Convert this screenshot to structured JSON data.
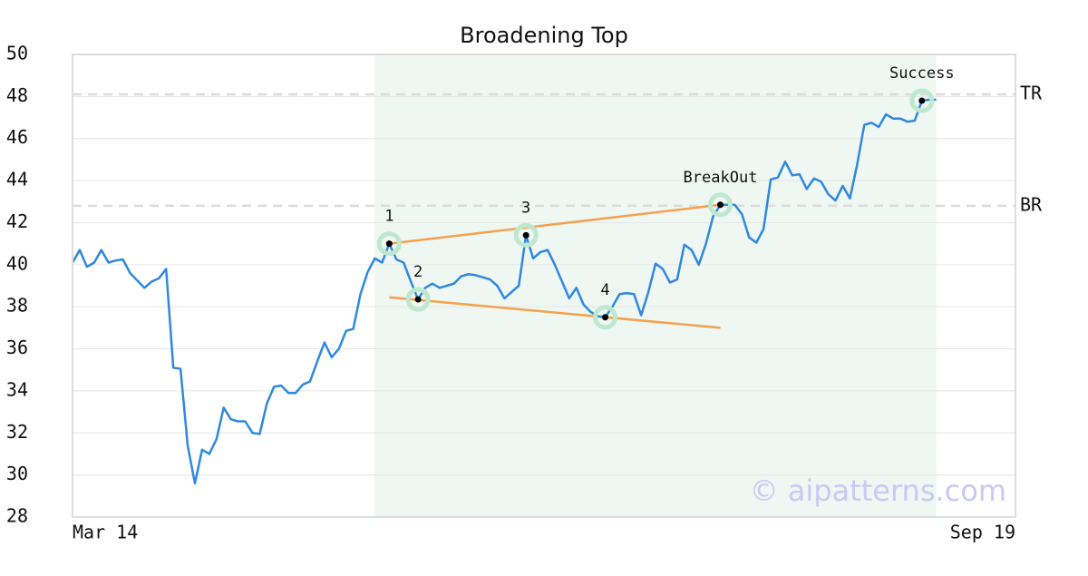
{
  "chart_data": {
    "type": "line",
    "title": "Broadening Top",
    "xlim": [
      0,
      131
    ],
    "xticks": [
      {
        "value": 0,
        "label": "Mar 14"
      },
      {
        "value": 131,
        "label": "Sep 19"
      }
    ],
    "ylim": [
      28,
      50
    ],
    "yticks": [
      28,
      30,
      32,
      34,
      36,
      38,
      40,
      42,
      44,
      46,
      48,
      50
    ],
    "grid": true,
    "color": "#2f88e0",
    "values": [
      40.1,
      40.7,
      39.9,
      40.1,
      40.7,
      40.1,
      40.2,
      40.25,
      39.6,
      39.25,
      38.9,
      39.2,
      39.35,
      39.8,
      35.1,
      35.05,
      31.4,
      29.6,
      31.2,
      31.0,
      31.7,
      33.2,
      32.65,
      32.55,
      32.55,
      32.0,
      31.95,
      33.4,
      34.2,
      34.25,
      33.9,
      33.9,
      34.3,
      34.45,
      35.4,
      36.3,
      35.6,
      36.0,
      36.85,
      36.95,
      38.6,
      39.65,
      40.3,
      40.1,
      41.0,
      40.25,
      40.1,
      39.2,
      38.35,
      38.9,
      39.1,
      38.9,
      39.0,
      39.1,
      39.45,
      39.55,
      39.5,
      39.4,
      39.3,
      39.0,
      38.4,
      38.7,
      39.0,
      41.4,
      40.3,
      40.6,
      40.7,
      40.0,
      39.2,
      38.4,
      38.9,
      38.1,
      37.75,
      37.55,
      37.5,
      38.0,
      38.6,
      38.65,
      38.6,
      37.6,
      38.7,
      40.05,
      39.8,
      39.15,
      39.3,
      40.95,
      40.7,
      40.0,
      41.0,
      42.3,
      42.85,
      42.85,
      42.85,
      42.4,
      41.3,
      41.05,
      41.7,
      44.05,
      44.15,
      44.9,
      44.25,
      44.3,
      43.6,
      44.1,
      43.95,
      43.35,
      43.05,
      43.75,
      43.15,
      44.75,
      46.65,
      46.75,
      46.55,
      47.15,
      46.95,
      46.95,
      46.8,
      46.85,
      47.8,
      47.85,
      47.85
    ],
    "highlight_range": [
      42,
      120
    ],
    "highlight_color": "#eef7f2",
    "trend_color": "#f5a04c",
    "trendlines": [
      {
        "x": [
          44,
          90
        ],
        "values": [
          41.0,
          42.85
        ]
      },
      {
        "x": [
          44,
          90
        ],
        "values": [
          38.45,
          37.0
        ]
      }
    ],
    "points": [
      {
        "x": 44,
        "value": 41.0,
        "label": "1"
      },
      {
        "x": 48,
        "value": 38.35,
        "label": "2"
      },
      {
        "x": 63,
        "value": 41.4,
        "label": "3"
      },
      {
        "x": 74,
        "value": 37.5,
        "label": "4"
      },
      {
        "x": 90,
        "value": 42.85,
        "label": "BreakOut"
      },
      {
        "x": 118,
        "value": 47.8,
        "label": "Success"
      }
    ],
    "levels": [
      {
        "label": "TR",
        "value": 48.1
      },
      {
        "label": "BR",
        "value": 42.8
      }
    ],
    "watermark": "© aipatterns.com"
  }
}
